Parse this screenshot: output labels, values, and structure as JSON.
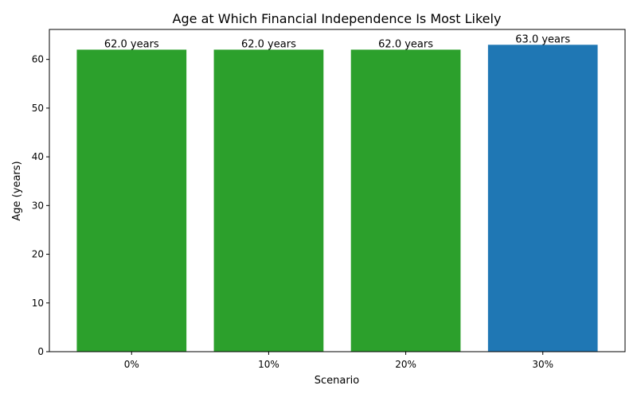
{
  "chart_data": {
    "type": "bar",
    "title": "Age at Which Financial Independence Is Most Likely",
    "xlabel": "Scenario",
    "ylabel": "Age (years)",
    "categories": [
      "0%",
      "10%",
      "20%",
      "30%"
    ],
    "values": [
      62.0,
      62.0,
      62.0,
      63.0
    ],
    "data_labels": [
      "62.0 years",
      "62.0 years",
      "62.0 years",
      "63.0 years"
    ],
    "colors": [
      "#2ca02c",
      "#2ca02c",
      "#2ca02c",
      "#1f77b4"
    ],
    "ylim": [
      0,
      66.15
    ],
    "yticks": [
      0,
      10,
      20,
      30,
      40,
      50,
      60
    ],
    "grid": false,
    "legend": "none"
  }
}
